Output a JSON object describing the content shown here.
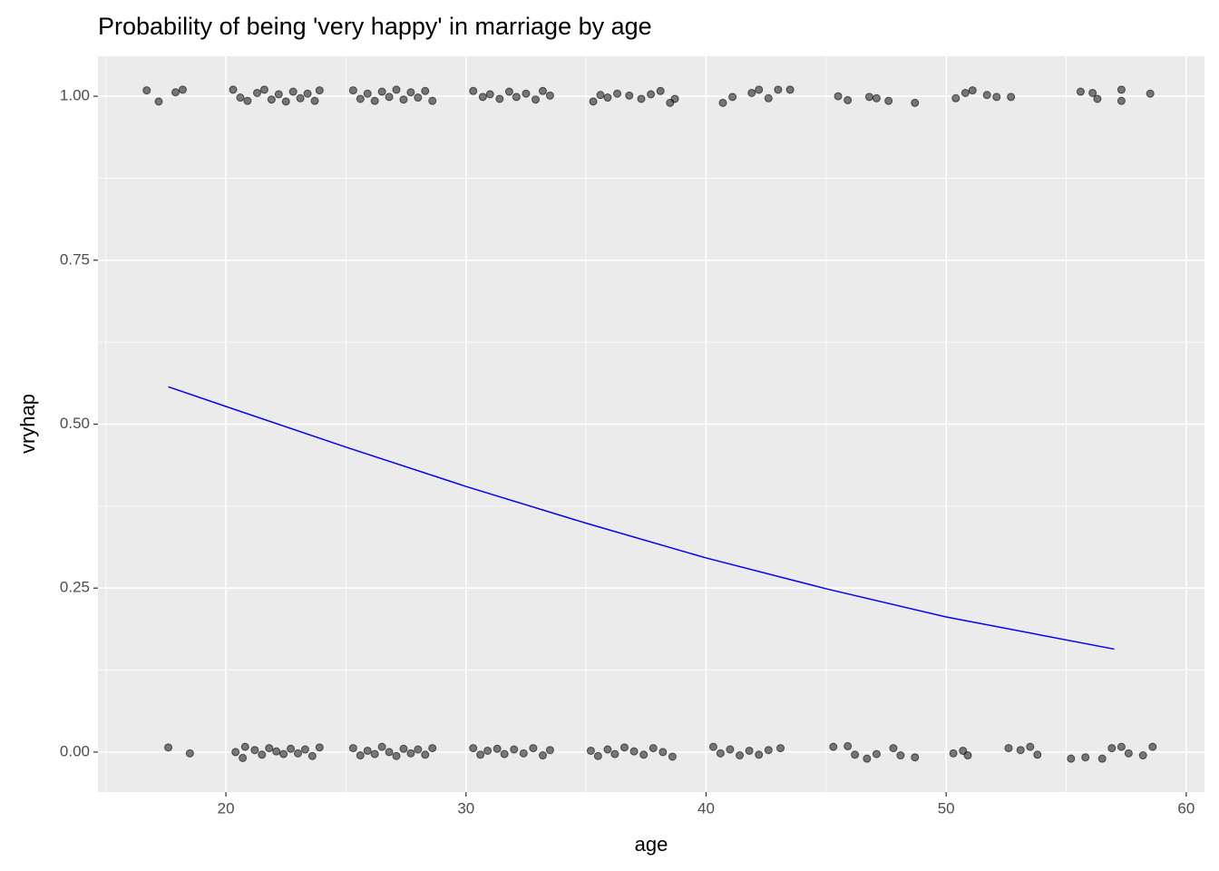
{
  "chart_data": {
    "type": "scatter",
    "title": "Probability of being 'very happy' in marriage by age",
    "x_label": "age",
    "y_label": "vryhap",
    "xlim": [
      14.67,
      60.76
    ],
    "ylim": [
      -0.061,
      1.061
    ],
    "xticks": [
      20,
      30,
      40,
      50,
      60
    ],
    "yticks": [
      {
        "value": 0,
        "label": "0.00"
      },
      {
        "value": 0.25,
        "label": "0.25"
      },
      {
        "value": 0.5,
        "label": "0.50"
      },
      {
        "value": 0.75,
        "label": "0.75"
      },
      {
        "value": 1,
        "label": "1.00"
      }
    ],
    "grid": true,
    "minor_grid": true,
    "series": [
      {
        "type": "scatter",
        "color": "#000000",
        "opacity": 0.5,
        "x": [
          16.7,
          17.2,
          17.9,
          18.2,
          20.3,
          20.6,
          20.9,
          21.3,
          21.6,
          21.9,
          22.2,
          22.5,
          22.8,
          23.1,
          23.4,
          23.7,
          23.9,
          25.3,
          25.6,
          25.9,
          26.2,
          26.5,
          26.8,
          27.1,
          27.4,
          27.7,
          28.0,
          28.3,
          28.6,
          30.3,
          30.7,
          31.0,
          31.4,
          31.8,
          32.1,
          32.5,
          32.9,
          33.2,
          33.5,
          35.3,
          35.6,
          35.9,
          36.3,
          36.8,
          37.3,
          37.7,
          38.1,
          38.5,
          38.7,
          40.7,
          41.1,
          41.9,
          42.2,
          42.6,
          43.0,
          43.5,
          45.5,
          45.9,
          46.8,
          47.1,
          47.6,
          48.7,
          50.4,
          50.8,
          51.1,
          51.7,
          52.1,
          52.7,
          55.6,
          56.1,
          56.3,
          57.3,
          57.3,
          58.5,
          17.6,
          18.5,
          20.4,
          20.7,
          20.8,
          21.2,
          21.5,
          21.8,
          22.1,
          22.4,
          22.7,
          23.0,
          23.3,
          23.6,
          23.9,
          25.3,
          25.6,
          25.9,
          26.2,
          26.5,
          26.8,
          27.1,
          27.4,
          27.7,
          28.0,
          28.3,
          28.6,
          30.3,
          30.6,
          30.9,
          31.3,
          31.6,
          32.0,
          32.4,
          32.8,
          33.2,
          33.5,
          35.2,
          35.5,
          35.9,
          36.2,
          36.6,
          37.0,
          37.4,
          37.8,
          38.2,
          38.6,
          40.3,
          40.6,
          41.0,
          41.4,
          41.8,
          42.2,
          42.6,
          43.1,
          45.3,
          45.9,
          46.2,
          46.7,
          47.1,
          47.8,
          48.1,
          48.7,
          50.3,
          50.7,
          50.9,
          52.6,
          53.1,
          53.5,
          53.8,
          55.2,
          55.8,
          56.5,
          56.9,
          57.3,
          57.6,
          58.2,
          58.6
        ],
        "values": [
          1.009,
          0.992,
          1.006,
          1.01,
          1.01,
          0.998,
          0.993,
          1.005,
          1.01,
          0.995,
          1.003,
          0.992,
          1.007,
          0.997,
          1.004,
          0.993,
          1.009,
          1.009,
          0.996,
          1.004,
          0.993,
          1.007,
          0.999,
          1.01,
          0.995,
          1.006,
          0.998,
          1.008,
          0.993,
          1.008,
          0.999,
          1.003,
          0.996,
          1.007,
          0.999,
          1.004,
          0.995,
          1.008,
          1.001,
          0.992,
          1.002,
          0.998,
          1.004,
          1.001,
          0.996,
          1.003,
          1.008,
          0.99,
          0.996,
          0.99,
          0.999,
          1.005,
          1.01,
          0.997,
          1.01,
          1.01,
          1.0,
          0.994,
          0.999,
          0.997,
          0.993,
          0.99,
          0.997,
          1.005,
          1.009,
          1.002,
          0.999,
          0.999,
          1.007,
          1.005,
          0.996,
          1.01,
          0.993,
          1.004,
          0.007,
          -0.002,
          0.0,
          -0.009,
          0.008,
          0.003,
          -0.004,
          0.006,
          0.001,
          -0.003,
          0.005,
          -0.002,
          0.004,
          -0.006,
          0.007,
          0.006,
          -0.005,
          0.002,
          -0.003,
          0.008,
          0.0,
          -0.006,
          0.005,
          -0.002,
          0.004,
          -0.004,
          0.006,
          0.006,
          -0.004,
          0.002,
          0.005,
          -0.003,
          0.004,
          -0.002,
          0.006,
          -0.005,
          0.003,
          0.002,
          -0.006,
          0.004,
          -0.003,
          0.007,
          0.001,
          -0.004,
          0.006,
          0.0,
          -0.007,
          0.008,
          -0.002,
          0.004,
          -0.005,
          0.002,
          -0.004,
          0.003,
          0.006,
          0.008,
          0.009,
          -0.004,
          -0.01,
          -0.003,
          0.006,
          -0.005,
          -0.008,
          -0.002,
          0.002,
          -0.005,
          0.006,
          0.003,
          0.008,
          -0.004,
          -0.01,
          -0.008,
          -0.01,
          0.006,
          0.008,
          -0.002,
          -0.005,
          0.008
        ]
      },
      {
        "type": "line",
        "color": "#0000ff",
        "x": [
          17.6,
          20,
          25,
          30,
          35,
          40,
          45,
          50,
          57
        ],
        "values": [
          0.557,
          0.527,
          0.465,
          0.405,
          0.349,
          0.296,
          0.249,
          0.206,
          0.157
        ]
      }
    ]
  }
}
